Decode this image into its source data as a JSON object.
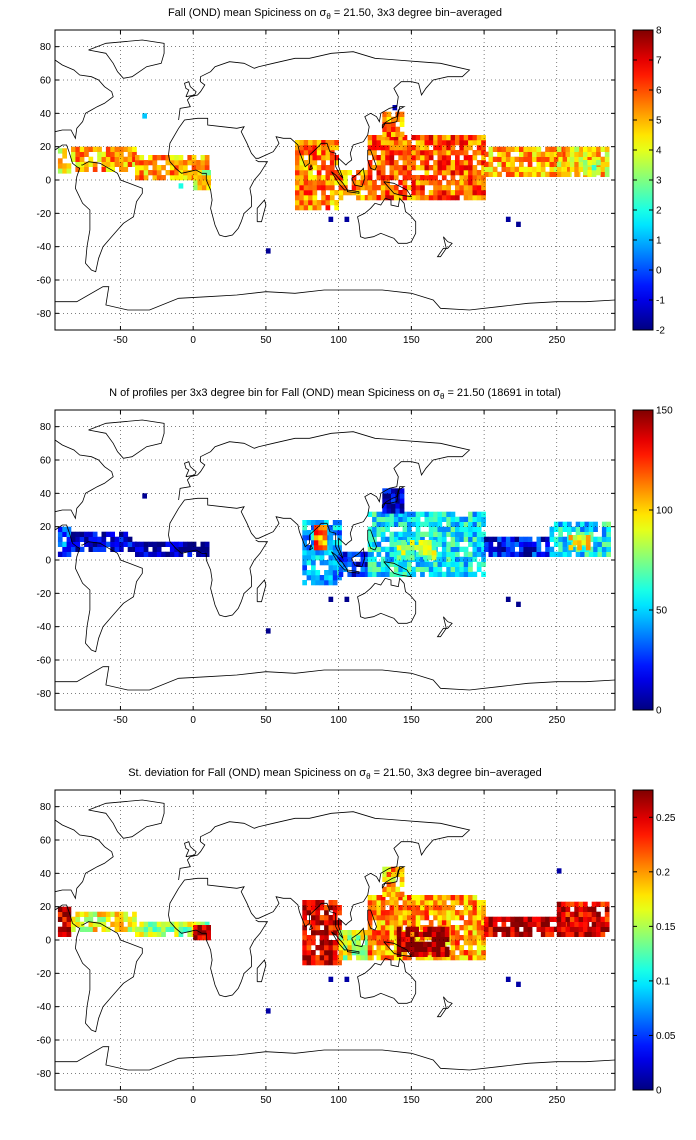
{
  "chart_data": [
    {
      "type": "heatmap",
      "title_parts": [
        "Fall (OND) mean Spiciness on ",
        "σ",
        "θ",
        " = 21.50, 3x3 degree bin−averaged"
      ],
      "xlim": [
        -95,
        290
      ],
      "ylim": [
        -90,
        90
      ],
      "xticks": [
        "-50",
        "0",
        "50",
        "100",
        "150",
        "200",
        "250"
      ],
      "xtick_values": [
        -50,
        0,
        50,
        100,
        150,
        200,
        250
      ],
      "yticks": [
        "80",
        "60",
        "40",
        "20",
        "0",
        "-20",
        "-40",
        "-60",
        "-80"
      ],
      "ytick_values": [
        80,
        60,
        40,
        20,
        0,
        -20,
        -40,
        -60,
        -80
      ],
      "grid": true,
      "colorbar": {
        "min": -2,
        "max": 8,
        "ticks": [
          "8",
          "7",
          "6",
          "5",
          "4",
          "3",
          "2",
          "1",
          "0",
          "-1",
          "-2"
        ],
        "tick_values": [
          8,
          7,
          6,
          5,
          4,
          3,
          2,
          1,
          0,
          -1,
          -2
        ]
      },
      "regions": [
        {
          "lon": [
            -93,
            -84
          ],
          "lat": [
            4,
            19
          ],
          "value": 4.2
        },
        {
          "lon": [
            -84,
            -40
          ],
          "lat": [
            5,
            18
          ],
          "value": 5.1
        },
        {
          "lon": [
            -40,
            10
          ],
          "lat": [
            0,
            14
          ],
          "value": 5.2
        },
        {
          "lon": [
            0,
            10
          ],
          "lat": [
            -6,
            4
          ],
          "value": 4.0
        },
        {
          "lon": [
            70,
            100
          ],
          "lat": [
            -18,
            22
          ],
          "value": 5.4
        },
        {
          "lon": [
            100,
            120
          ],
          "lat": [
            -12,
            6
          ],
          "value": 5.3
        },
        {
          "lon": [
            120,
            200
          ],
          "lat": [
            -12,
            26
          ],
          "value": 5.9
        },
        {
          "lon": [
            130,
            145
          ],
          "lat": [
            26,
            40
          ],
          "value": 5.6
        },
        {
          "lon": [
            200,
            270
          ],
          "lat": [
            2,
            18
          ],
          "value": 5.0
        },
        {
          "lon": [
            250,
            285
          ],
          "lat": [
            2,
            20
          ],
          "value": 4.6
        },
        {
          "lon": [
            268,
            278
          ],
          "lat": [
            3,
            11
          ],
          "value": 3.6
        }
      ],
      "spots": [
        {
          "lon": -35,
          "lat": 37,
          "value": 1.2
        },
        {
          "lon": -10,
          "lat": -5,
          "value": 2.0
        },
        {
          "lon": 50,
          "lat": -44,
          "value": -1.8
        },
        {
          "lon": 93,
          "lat": -25,
          "value": -1.7
        },
        {
          "lon": 104,
          "lat": -25,
          "value": -1.7
        },
        {
          "lon": 137,
          "lat": 42,
          "value": -1.5
        },
        {
          "lon": 215,
          "lat": -25,
          "value": -1.7
        },
        {
          "lon": 222,
          "lat": -28,
          "value": -1.8
        }
      ]
    },
    {
      "type": "heatmap",
      "title_parts": [
        "N of profiles per 3x3 degree bin for Fall (OND) mean Spiciness on ",
        "σ",
        "θ",
        " = 21.50 (18691 in total)"
      ],
      "xlim": [
        -95,
        290
      ],
      "ylim": [
        -90,
        90
      ],
      "xticks": [
        "-50",
        "0",
        "50",
        "100",
        "150",
        "200",
        "250"
      ],
      "xtick_values": [
        -50,
        0,
        50,
        100,
        150,
        200,
        250
      ],
      "yticks": [
        "80",
        "60",
        "40",
        "20",
        "0",
        "-20",
        "-40",
        "-60",
        "-80"
      ],
      "ytick_values": [
        80,
        60,
        40,
        20,
        0,
        -20,
        -40,
        -60,
        -80
      ],
      "grid": true,
      "colorbar": {
        "min": 0,
        "max": 150,
        "ticks": [
          "150",
          "100",
          "50",
          "0"
        ],
        "tick_values": [
          150,
          100,
          50,
          0
        ]
      },
      "regions": [
        {
          "lon": [
            -93,
            -84
          ],
          "lat": [
            2,
            19
          ],
          "value": 30
        },
        {
          "lon": [
            -84,
            -40
          ],
          "lat": [
            5,
            17
          ],
          "value": 10
        },
        {
          "lon": [
            -40,
            10
          ],
          "lat": [
            2,
            11
          ],
          "value": 6
        },
        {
          "lon": [
            75,
            100
          ],
          "lat": [
            -15,
            22
          ],
          "value": 45
        },
        {
          "lon": [
            83,
            92
          ],
          "lat": [
            6,
            20
          ],
          "value": 115
        },
        {
          "lon": [
            100,
            122
          ],
          "lat": [
            -10,
            5
          ],
          "value": 22
        },
        {
          "lon": [
            120,
            200
          ],
          "lat": [
            -10,
            28
          ],
          "value": 55
        },
        {
          "lon": [
            140,
            165
          ],
          "lat": [
            0,
            12
          ],
          "value": 80
        },
        {
          "lon": [
            130,
            145
          ],
          "lat": [
            28,
            42
          ],
          "value": 12
        },
        {
          "lon": [
            200,
            245
          ],
          "lat": [
            2,
            12
          ],
          "value": 20
        },
        {
          "lon": [
            245,
            285
          ],
          "lat": [
            2,
            22
          ],
          "value": 55
        },
        {
          "lon": [
            258,
            272
          ],
          "lat": [
            6,
            14
          ],
          "value": 100
        }
      ],
      "spots": [
        {
          "lon": -35,
          "lat": 37,
          "value": 3
        },
        {
          "lon": 50,
          "lat": -44,
          "value": 2
        },
        {
          "lon": 93,
          "lat": -25,
          "value": 2
        },
        {
          "lon": 104,
          "lat": -25,
          "value": 2
        },
        {
          "lon": 215,
          "lat": -25,
          "value": 2
        },
        {
          "lon": 222,
          "lat": -28,
          "value": 2
        }
      ]
    },
    {
      "type": "heatmap",
      "title_parts": [
        "St. deviation for Fall (OND) mean Spiciness on ",
        "σ",
        "θ",
        " = 21.50, 3x3 degree bin−averaged"
      ],
      "xlim": [
        -95,
        290
      ],
      "ylim": [
        -90,
        90
      ],
      "xticks": [
        "-50",
        "0",
        "50",
        "100",
        "150",
        "200",
        "250"
      ],
      "xtick_values": [
        -50,
        0,
        50,
        100,
        150,
        200,
        250
      ],
      "yticks": [
        "80",
        "60",
        "40",
        "20",
        "0",
        "-20",
        "-40",
        "-60",
        "-80"
      ],
      "ytick_values": [
        80,
        60,
        40,
        20,
        0,
        -20,
        -40,
        -60,
        -80
      ],
      "grid": true,
      "colorbar": {
        "min": 0,
        "max": 0.275,
        "ticks": [
          "0.25",
          "0.2",
          "0.15",
          "0.1",
          "0.05",
          "0"
        ],
        "tick_values": [
          0.25,
          0.2,
          0.15,
          0.1,
          0.05,
          0
        ]
      },
      "regions": [
        {
          "lon": [
            -93,
            -84
          ],
          "lat": [
            2,
            19
          ],
          "value": 0.26
        },
        {
          "lon": [
            -84,
            -40
          ],
          "lat": [
            5,
            17
          ],
          "value": 0.17
        },
        {
          "lon": [
            -40,
            10
          ],
          "lat": [
            2,
            11
          ],
          "value": 0.15
        },
        {
          "lon": [
            0,
            10
          ],
          "lat": [
            0,
            8
          ],
          "value": 0.26
        },
        {
          "lon": [
            75,
            100
          ],
          "lat": [
            -15,
            22
          ],
          "value": 0.25
        },
        {
          "lon": [
            100,
            122
          ],
          "lat": [
            -12,
            6
          ],
          "value": 0.16
        },
        {
          "lon": [
            120,
            200
          ],
          "lat": [
            -12,
            26
          ],
          "value": 0.2
        },
        {
          "lon": [
            140,
            175
          ],
          "lat": [
            -10,
            8
          ],
          "value": 0.27
        },
        {
          "lon": [
            130,
            145
          ],
          "lat": [
            26,
            42
          ],
          "value": 0.19
        },
        {
          "lon": [
            200,
            270
          ],
          "lat": [
            2,
            14
          ],
          "value": 0.26
        },
        {
          "lon": [
            250,
            285
          ],
          "lat": [
            2,
            22
          ],
          "value": 0.25
        }
      ],
      "spots": [
        {
          "lon": 50,
          "lat": -44,
          "value": 0.01
        },
        {
          "lon": 93,
          "lat": -25,
          "value": 0.01
        },
        {
          "lon": 104,
          "lat": -25,
          "value": 0.01
        },
        {
          "lon": 215,
          "lat": -25,
          "value": 0.01
        },
        {
          "lon": 222,
          "lat": -28,
          "value": 0.01
        },
        {
          "lon": 250,
          "lat": 40,
          "value": 0.01
        }
      ]
    }
  ]
}
